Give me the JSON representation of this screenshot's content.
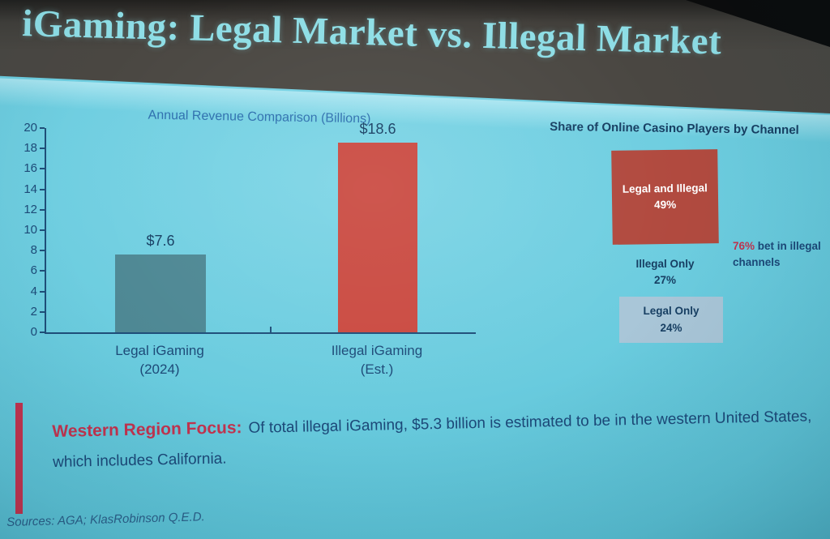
{
  "slide": {
    "title": "iGaming: Legal Market vs. Illegal Market"
  },
  "chart_data": [
    {
      "type": "bar",
      "title": "Annual Revenue Comparison (Billions)",
      "categories": [
        [
          "Legal iGaming",
          "(2024)"
        ],
        [
          "Illegal iGaming",
          "(Est.)"
        ]
      ],
      "values": [
        7.6,
        18.6
      ],
      "value_labels": [
        "$7.6",
        "$18.6"
      ],
      "bar_colors": [
        "#4e8894",
        "#ca4a41"
      ],
      "xlabel": "",
      "ylabel": "",
      "ylim": [
        0,
        20
      ],
      "ytick_step": 2,
      "grid": false,
      "legend": "none"
    },
    {
      "type": "stacked-share",
      "title": "Share of Online Casino Players by Channel",
      "segments": [
        {
          "label": "Legal and Illegal",
          "pct": "49%",
          "value": 49,
          "box_color": "#b14a3f",
          "text_color": "#ffffff"
        },
        {
          "label": "Illegal Only",
          "pct": "27%",
          "value": 27,
          "box_color": "",
          "text_color": "#173f63"
        },
        {
          "label": "Legal Only",
          "pct": "24%",
          "value": 24,
          "box_color": "#a9c6d8",
          "text_color": "#173f63"
        }
      ],
      "annotation": {
        "highlight": "76%",
        "text_line1": " bet in illegal",
        "text_line2": "channels"
      }
    }
  ],
  "callout": {
    "lead": "Western Region Focus:",
    "body": "Of total illegal iGaming, $5.3 billion is estimated to be in the western United States, which includes California."
  },
  "sources": {
    "text": "Sources: AGA; KlasRobinson Q.E.D."
  },
  "colors": {
    "background": "#66cadf",
    "header_bg": "#4a4742",
    "title_text": "#8edee6",
    "chart_axis": "#1f4e79",
    "chart_text": "#1d4a78",
    "revenue_title_text": "#2e6fae",
    "share_title_text": "#173f63",
    "value_label_text": "#173f63",
    "accent_red": "#c2334e",
    "callout_body_text": "#1c4878",
    "sources_text": "#2b5e88"
  }
}
